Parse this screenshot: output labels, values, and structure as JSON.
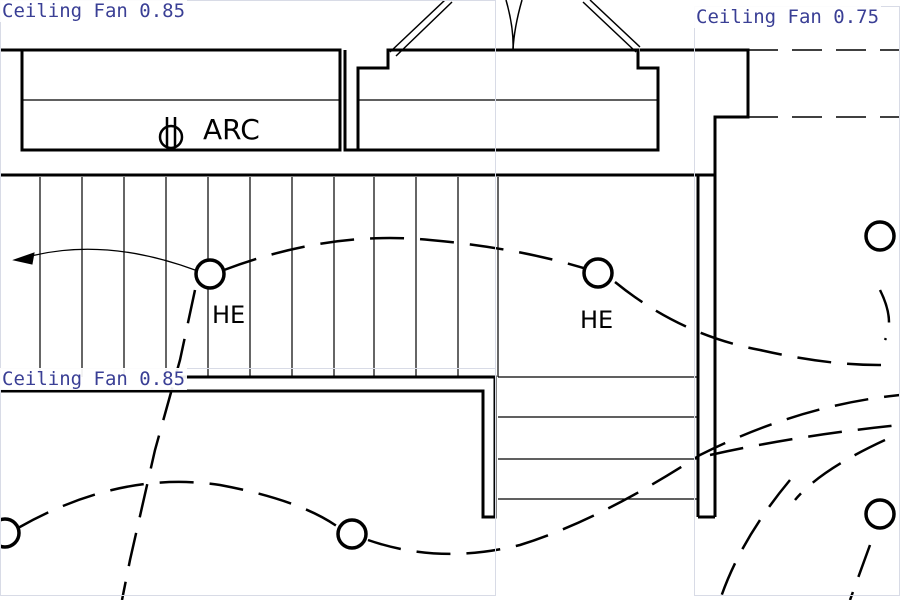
{
  "plan": {
    "room_label": "ARC",
    "outlet_labels": [
      "HE",
      "HE"
    ]
  },
  "detections": [
    {
      "label": "Ceiling Fan",
      "score": "0.85"
    },
    {
      "label": "Ceiling Fan",
      "score": "0.75"
    },
    {
      "label": "Ceiling Fan",
      "score": "0.85"
    }
  ],
  "colors": {
    "detection_label": "#3a3f95",
    "detection_box": "#d8dbe6",
    "linework": "#000000"
  }
}
